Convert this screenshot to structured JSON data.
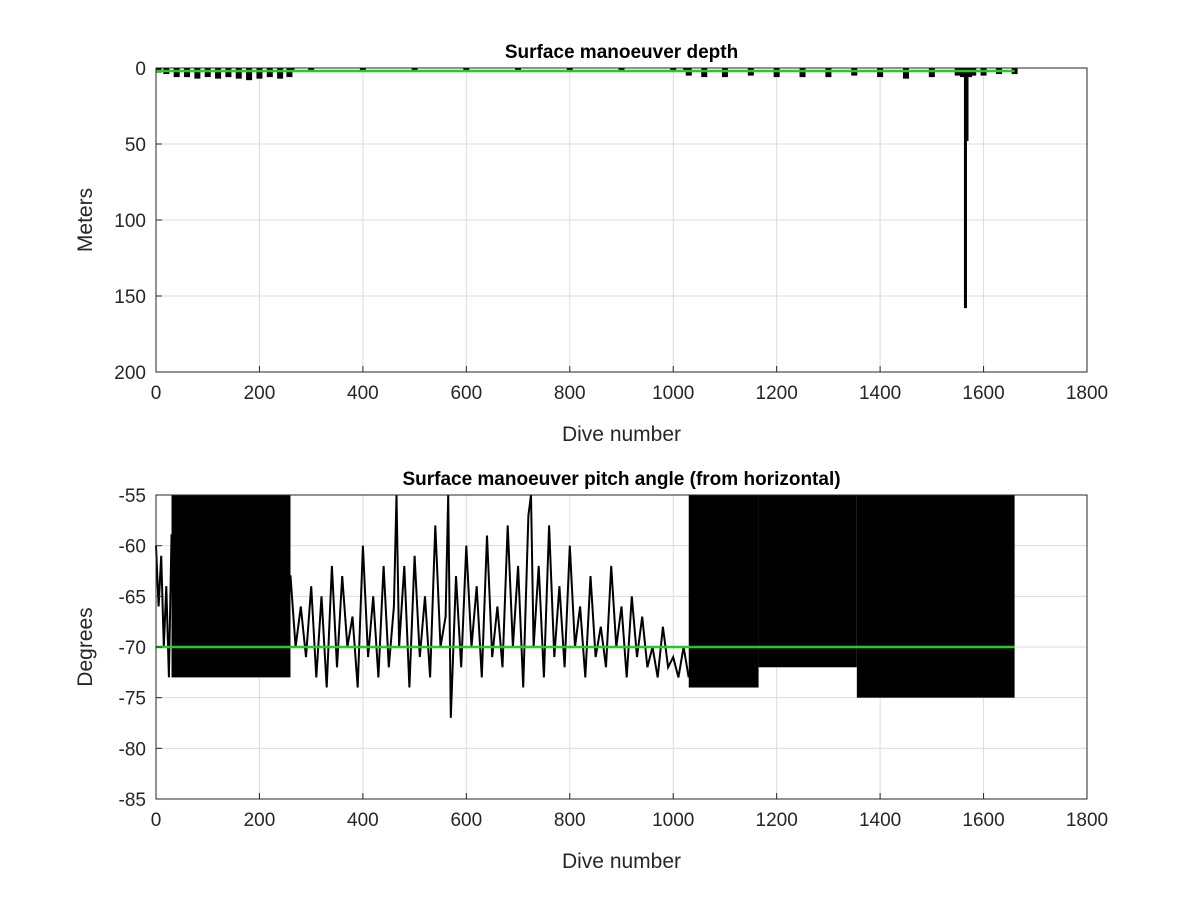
{
  "chart_data": [
    {
      "type": "line",
      "title": "Surface manoeuver depth",
      "xlabel": "Dive number",
      "ylabel": "Meters",
      "xlim": [
        0,
        1800
      ],
      "ylim": [
        0,
        200
      ],
      "y_reversed": true,
      "grid": true,
      "x_ticks": [
        "0",
        "200",
        "400",
        "600",
        "800",
        "1000",
        "1200",
        "1400",
        "1600",
        "1800"
      ],
      "y_ticks": [
        "0",
        "50",
        "100",
        "150",
        "200"
      ],
      "colors": {
        "data": "#000000",
        "reference": "#22cc22"
      },
      "reference_line": {
        "y": 2
      },
      "series": [
        {
          "x": [
            5,
            20,
            40,
            60,
            80,
            100,
            120,
            140,
            160,
            180,
            200,
            220,
            240,
            258,
            262,
            300,
            400,
            500,
            600,
            700,
            800,
            900,
            1000,
            1025,
            1030,
            1060,
            1100,
            1150,
            1200,
            1250,
            1300,
            1350,
            1400,
            1450,
            1500,
            1550,
            1560,
            1565,
            1568,
            1572,
            1580,
            1600,
            1630,
            1660
          ],
          "y": [
            3,
            4,
            6,
            6,
            7,
            6,
            7,
            6,
            7,
            8,
            7,
            6,
            7,
            6,
            2,
            2,
            2,
            2,
            2,
            2,
            2,
            2,
            2,
            2,
            5,
            6,
            6,
            5,
            6,
            6,
            6,
            5,
            6,
            7,
            6,
            5,
            6,
            158,
            48,
            6,
            5,
            5,
            4,
            4
          ]
        }
      ]
    },
    {
      "type": "line",
      "title": "Surface manoeuver pitch angle (from horizontal)",
      "xlabel": "Dive number",
      "ylabel": "Degrees",
      "xlim": [
        0,
        1800
      ],
      "ylim": [
        -85,
        -55
      ],
      "grid": true,
      "x_ticks": [
        "0",
        "200",
        "400",
        "600",
        "800",
        "1000",
        "1200",
        "1400",
        "1600",
        "1800"
      ],
      "y_ticks": [
        "-55",
        "-60",
        "-65",
        "-70",
        "-75",
        "-80",
        "-85"
      ],
      "colors": {
        "data": "#000000",
        "reference": "#22cc22"
      },
      "reference_line": {
        "y": -70
      },
      "saturated_blocks": [
        {
          "x_range": [
            30,
            260
          ],
          "y_range": [
            -73,
            -55
          ]
        },
        {
          "x_range": [
            1030,
            1165
          ],
          "y_range": [
            -74,
            -55
          ]
        },
        {
          "x_range": [
            1165,
            1355
          ],
          "y_range": [
            -72,
            -55
          ]
        },
        {
          "x_range": [
            1355,
            1660
          ],
          "y_range": [
            -75,
            -55
          ]
        }
      ],
      "series": [
        {
          "x": [
            0,
            5,
            10,
            15,
            20,
            25,
            30,
            260,
            270,
            280,
            290,
            300,
            310,
            320,
            330,
            340,
            350,
            360,
            370,
            380,
            390,
            400,
            410,
            420,
            430,
            440,
            450,
            460,
            465,
            470,
            480,
            490,
            500,
            510,
            520,
            530,
            540,
            550,
            560,
            565,
            570,
            580,
            590,
            600,
            610,
            620,
            630,
            640,
            650,
            660,
            670,
            680,
            690,
            700,
            710,
            720,
            725,
            730,
            740,
            750,
            760,
            770,
            780,
            790,
            800,
            810,
            820,
            830,
            840,
            850,
            860,
            870,
            880,
            890,
            900,
            910,
            920,
            930,
            940,
            950,
            960,
            970,
            980,
            990,
            1000,
            1010,
            1020,
            1030
          ],
          "y": [
            -60,
            -66,
            -61,
            -70,
            -64,
            -73,
            -59,
            -63,
            -70,
            -66,
            -71,
            -64,
            -73,
            -65,
            -74,
            -62,
            -72,
            -63,
            -70,
            -67,
            -74,
            -60,
            -71,
            -65,
            -73,
            -62,
            -72,
            -66,
            -55,
            -70,
            -62,
            -74,
            -61,
            -71,
            -65,
            -73,
            -58,
            -70,
            -67,
            -55,
            -77,
            -63,
            -72,
            -60,
            -70,
            -64,
            -73,
            -59,
            -71,
            -66,
            -72,
            -58,
            -70,
            -62,
            -74,
            -57,
            -55,
            -70,
            -62,
            -73,
            -58,
            -71,
            -64,
            -72,
            -60,
            -70,
            -66,
            -73,
            -63,
            -71,
            -68,
            -72,
            -62,
            -70,
            -66,
            -73,
            -65,
            -71,
            -67,
            -72,
            -70,
            -73,
            -68,
            -72,
            -71,
            -73,
            -70,
            -73
          ]
        }
      ]
    }
  ]
}
